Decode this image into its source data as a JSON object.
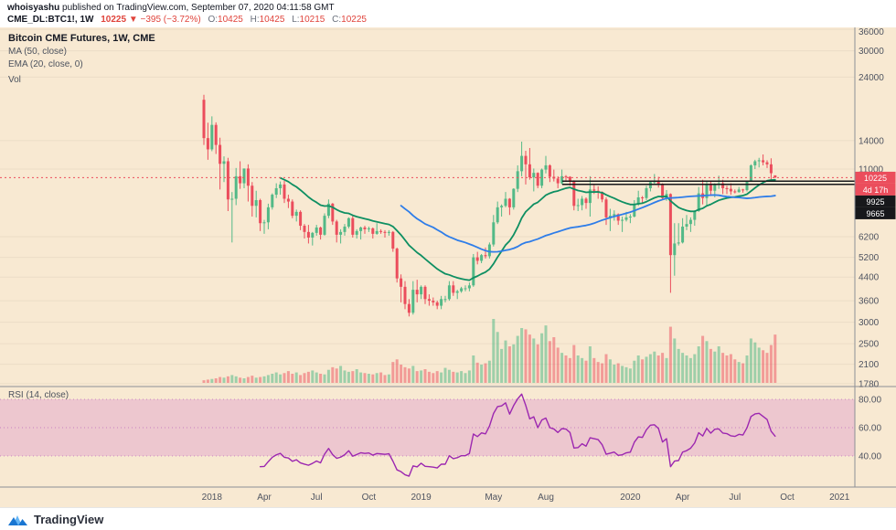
{
  "header": {
    "byline_user": "whoisyashu",
    "byline_rest": " published on TradingView.com, September 07, 2020 04:11:58 GMT",
    "symbol": "CME_DL:BTC1!, 1W",
    "last_price": "10225",
    "change": "▼ −395 (−3.72%)",
    "ohlc": {
      "o_label": "O:",
      "o": "10425",
      "h_label": "H:",
      "h": "10425",
      "l_label": "L:",
      "l": "10215",
      "c_label": "C:",
      "c": "10225"
    }
  },
  "legend": {
    "title": "Bitcoin CME Futures, 1W, CME",
    "ma": "MA (50, close)",
    "ema": "EMA (20, close, 0)",
    "vol": "Vol"
  },
  "rsi_legend": "RSI (14, close)",
  "footer": {
    "brand": "TradingView"
  },
  "colors": {
    "background": "#f8e9d2",
    "candle_up": "#53b987",
    "candle_down": "#eb4d5c",
    "vol_up": "rgba(83,185,135,0.55)",
    "vol_down": "rgba(235,77,92,0.5)",
    "ema20": "#0e8f62",
    "ma50": "#2e7de9",
    "rsi": "#9c27b0",
    "rsi_band": "rgba(201,78,195,0.22)",
    "rsi_band_line": "rgba(156,39,176,0.45)",
    "price_line": "#eb4d5c",
    "label_red_bg": "#eb4d5c",
    "label_black_bg": "#17181b",
    "axis_text": "#4f5461",
    "grid": "rgba(0,0,0,0.05)",
    "divider": "#8c8f96",
    "down_text": "#e0443c",
    "brand_blue": "#1976d2",
    "brand_blue_light": "#64b5f6"
  },
  "chart_data": {
    "type": "candlestick",
    "title": "Bitcoin CME Futures, 1W, CME",
    "symbol": "CME_DL:BTC1!",
    "interval": "1W",
    "exchange": "CME",
    "scale": "logarithmic",
    "start_week": "2017-12-18",
    "price_axis_ticks": [
      36000,
      30000,
      24000,
      14000,
      11000,
      6200,
      5200,
      4400,
      3600,
      3000,
      2500,
      2100,
      1780
    ],
    "x_axis": [
      {
        "label": "2018",
        "week": 2
      },
      {
        "label": "Apr",
        "week": 15
      },
      {
        "label": "Jul",
        "week": 28
      },
      {
        "label": "Oct",
        "week": 41
      },
      {
        "label": "2019",
        "week": 54
      },
      {
        "label": "May",
        "week": 72
      },
      {
        "label": "Aug",
        "week": 85
      },
      {
        "label": "2020",
        "week": 106
      },
      {
        "label": "Apr",
        "week": 119
      },
      {
        "label": "Jul",
        "week": 132
      },
      {
        "label": "Oct",
        "week": 145
      },
      {
        "label": "2021",
        "week": 158
      }
    ],
    "rsi_ticks": [
      {
        "v": 80,
        "label": "80.00"
      },
      {
        "v": 60,
        "label": "60.00"
      },
      {
        "v": 40,
        "label": "40.00"
      }
    ],
    "indicators": [
      {
        "name": "MA",
        "period": 50,
        "source": "close",
        "color": "#2e7de9"
      },
      {
        "name": "EMA",
        "period": 20,
        "source": "close",
        "color": "#0e8f62"
      },
      {
        "name": "RSI",
        "period": 14,
        "source": "close",
        "color": "#9c27b0",
        "band": [
          40,
          80
        ]
      }
    ],
    "last_price": 10225,
    "levels": [
      9925,
      9665
    ],
    "price_label_texts": {
      "last": "10225",
      "countdown": "4d 17h",
      "level1": "9925",
      "level2": "9665"
    },
    "candles": [
      [
        19800,
        20650,
        13500,
        14300
      ],
      [
        14300,
        16300,
        11900,
        13000
      ],
      [
        13000,
        17200,
        12800,
        16000
      ],
      [
        16000,
        16350,
        12500,
        13500
      ],
      [
        13500,
        14350,
        9250,
        11500
      ],
      [
        11500,
        12250,
        9850,
        11750
      ],
      [
        11750,
        12100,
        7700,
        8500
      ],
      [
        8500,
        9050,
        5900,
        8550
      ],
      [
        8550,
        11100,
        8100,
        10350
      ],
      [
        10350,
        11750,
        9300,
        9750
      ],
      [
        9750,
        11050,
        9350,
        11050
      ],
      [
        11050,
        11450,
        8350,
        9550
      ],
      [
        9550,
        9850,
        7350,
        8050
      ],
      [
        8050,
        9150,
        7300,
        8450
      ],
      [
        8450,
        8550,
        6500,
        6950
      ],
      [
        6950,
        7150,
        6350,
        7000
      ],
      [
        7000,
        8200,
        6600,
        7950
      ],
      [
        7950,
        8950,
        7800,
        8850
      ],
      [
        8850,
        9750,
        8600,
        9350
      ],
      [
        9350,
        9900,
        8850,
        9650
      ],
      [
        9650,
        9950,
        8250,
        8550
      ],
      [
        8550,
        8850,
        7900,
        8350
      ],
      [
        8350,
        8500,
        7250,
        7400
      ],
      [
        7400,
        7800,
        7050,
        7650
      ],
      [
        7650,
        7750,
        6550,
        6800
      ],
      [
        6800,
        6900,
        6100,
        6450
      ],
      [
        6450,
        6850,
        5850,
        6150
      ],
      [
        6150,
        6450,
        5750,
        6400
      ],
      [
        6400,
        6850,
        6250,
        6700
      ],
      [
        6700,
        6750,
        6050,
        6300
      ],
      [
        6300,
        7550,
        6250,
        7400
      ],
      [
        7400,
        8500,
        7250,
        8200
      ],
      [
        8200,
        8250,
        6850,
        7050
      ],
      [
        7050,
        7150,
        5900,
        6300
      ],
      [
        6300,
        6600,
        5850,
        6450
      ],
      [
        6450,
        6900,
        6250,
        6750
      ],
      [
        6750,
        7300,
        6650,
        7250
      ],
      [
        7250,
        7400,
        6150,
        6300
      ],
      [
        6300,
        6600,
        6100,
        6500
      ],
      [
        6500,
        6750,
        6050,
        6700
      ],
      [
        6700,
        6800,
        6350,
        6600
      ],
      [
        6600,
        6750,
        6450,
        6650
      ],
      [
        6650,
        6700,
        6100,
        6350
      ],
      [
        6350,
        6950,
        6300,
        6500
      ],
      [
        6500,
        6600,
        6350,
        6450
      ],
      [
        6450,
        6550,
        6150,
        6400
      ],
      [
        6400,
        6550,
        6250,
        6450
      ],
      [
        6450,
        6500,
        5450,
        5600
      ],
      [
        5600,
        5650,
        4200,
        4350
      ],
      [
        4350,
        4500,
        3550,
        4050
      ],
      [
        4050,
        4250,
        3350,
        3500
      ],
      [
        3500,
        3650,
        3150,
        3250
      ],
      [
        3250,
        4250,
        3200,
        3950
      ],
      [
        3950,
        4300,
        3550,
        3800
      ],
      [
        3800,
        4100,
        3650,
        4050
      ],
      [
        4050,
        4100,
        3500,
        3650
      ],
      [
        3650,
        3800,
        3450,
        3600
      ],
      [
        3600,
        3700,
        3450,
        3550
      ],
      [
        3550,
        3600,
        3350,
        3450
      ],
      [
        3450,
        3750,
        3350,
        3650
      ],
      [
        3650,
        3750,
        3550,
        3650
      ],
      [
        3650,
        4250,
        3600,
        4100
      ],
      [
        4100,
        4250,
        3750,
        3850
      ],
      [
        3850,
        3950,
        3650,
        3900
      ],
      [
        3900,
        4050,
        3850,
        4000
      ],
      [
        4000,
        4100,
        3900,
        4000
      ],
      [
        4000,
        4200,
        3900,
        4100
      ],
      [
        4100,
        5350,
        4050,
        5200
      ],
      [
        5200,
        5450,
        4900,
        5050
      ],
      [
        5050,
        5350,
        4950,
        5300
      ],
      [
        5300,
        5650,
        5150,
        5250
      ],
      [
        5250,
        5900,
        5150,
        5800
      ],
      [
        5800,
        7450,
        5700,
        7000
      ],
      [
        7000,
        8350,
        6900,
        7950
      ],
      [
        7950,
        8150,
        7350,
        8050
      ],
      [
        8050,
        9050,
        7950,
        8550
      ],
      [
        8550,
        8600,
        7450,
        7950
      ],
      [
        7950,
        9350,
        7800,
        9300
      ],
      [
        9300,
        11350,
        9050,
        10800
      ],
      [
        10800,
        13880,
        10350,
        12300
      ],
      [
        12300,
        12850,
        9650,
        11450
      ],
      [
        11450,
        13150,
        10050,
        10250
      ],
      [
        10250,
        11050,
        9100,
        10650
      ],
      [
        10650,
        10700,
        9350,
        9550
      ],
      [
        9550,
        11050,
        9350,
        10950
      ],
      [
        10950,
        12300,
        10600,
        11350
      ],
      [
        11350,
        11450,
        9850,
        10300
      ],
      [
        10300,
        10950,
        9900,
        10150
      ],
      [
        10150,
        10350,
        9350,
        9750
      ],
      [
        9750,
        10950,
        9650,
        10350
      ],
      [
        10350,
        10450,
        9900,
        10300
      ],
      [
        10300,
        10350,
        9550,
        9950
      ],
      [
        9950,
        10000,
        7750,
        8050
      ],
      [
        8050,
        8550,
        7700,
        8100
      ],
      [
        8100,
        8750,
        7750,
        8550
      ],
      [
        8550,
        8650,
        7850,
        8250
      ],
      [
        8250,
        10350,
        7350,
        9250
      ],
      [
        9250,
        9600,
        8900,
        9150
      ],
      [
        9150,
        9500,
        8550,
        9050
      ],
      [
        9050,
        9100,
        8300,
        8500
      ],
      [
        8500,
        8650,
        6850,
        7300
      ],
      [
        7300,
        7850,
        6500,
        7400
      ],
      [
        7400,
        7750,
        7100,
        7500
      ],
      [
        7500,
        7550,
        6850,
        7100
      ],
      [
        7100,
        7350,
        6450,
        7150
      ],
      [
        7150,
        7650,
        7050,
        7300
      ],
      [
        7300,
        7500,
        6950,
        7350
      ],
      [
        7350,
        8450,
        7300,
        8150
      ],
      [
        8150,
        9150,
        8050,
        8650
      ],
      [
        8650,
        8750,
        8250,
        8600
      ],
      [
        8600,
        9550,
        8450,
        9350
      ],
      [
        9350,
        9950,
        9100,
        9850
      ],
      [
        9850,
        10550,
        9650,
        9900
      ],
      [
        9900,
        10300,
        9400,
        9650
      ],
      [
        9650,
        9750,
        8450,
        8600
      ],
      [
        8600,
        9200,
        8400,
        8900
      ],
      [
        8900,
        8950,
        3850,
        5300
      ],
      [
        5300,
        6950,
        4450,
        5850
      ],
      [
        5850,
        6950,
        5750,
        5900
      ],
      [
        5900,
        7250,
        5850,
        6750
      ],
      [
        6750,
        7450,
        6550,
        6900
      ],
      [
        6900,
        7300,
        6450,
        7150
      ],
      [
        7150,
        7750,
        6800,
        7700
      ],
      [
        7700,
        9450,
        7650,
        8950
      ],
      [
        8950,
        10050,
        8150,
        8600
      ],
      [
        8600,
        9950,
        8100,
        9650
      ],
      [
        9650,
        9950,
        8750,
        9150
      ],
      [
        9150,
        9750,
        8650,
        9700
      ],
      [
        9700,
        10400,
        9300,
        9750
      ],
      [
        9750,
        10050,
        8900,
        9350
      ],
      [
        9350,
        9550,
        8900,
        9300
      ],
      [
        9300,
        9750,
        8850,
        9100
      ],
      [
        9100,
        9250,
        8950,
        9050
      ],
      [
        9050,
        9450,
        9000,
        9250
      ],
      [
        9250,
        9300,
        9000,
        9200
      ],
      [
        9200,
        9950,
        9100,
        9900
      ],
      [
        9900,
        11450,
        9900,
        11350
      ],
      [
        11350,
        11900,
        11000,
        11750
      ],
      [
        11750,
        12100,
        11150,
        11850
      ],
      [
        11850,
        12450,
        11350,
        11650
      ],
      [
        11650,
        11850,
        11100,
        11450
      ],
      [
        11450,
        12050,
        9950,
        10620
      ],
      [
        10425,
        10425,
        10215,
        10225
      ]
    ],
    "volumes": [
      0.4,
      0.5,
      0.6,
      0.7,
      0.9,
      0.8,
      1.0,
      1.2,
      1.0,
      0.8,
      0.7,
      0.9,
      1.1,
      0.8,
      0.9,
      1.0,
      1.2,
      1.4,
      1.6,
      1.3,
      1.5,
      1.8,
      1.4,
      1.6,
      1.2,
      1.5,
      1.7,
      1.9,
      1.6,
      1.4,
      1.3,
      2.0,
      2.4,
      2.2,
      2.6,
      1.9,
      1.7,
      1.8,
      2.1,
      1.6,
      1.5,
      1.4,
      1.3,
      1.5,
      1.6,
      1.2,
      1.3,
      3.2,
      3.6,
      2.8,
      2.4,
      2.2,
      2.6,
      1.8,
      1.9,
      2.1,
      1.7,
      1.5,
      1.8,
      1.6,
      2.3,
      2.0,
      1.7,
      1.6,
      1.8,
      1.5,
      1.9,
      4.2,
      3.1,
      2.8,
      3.0,
      3.4,
      9.8,
      7.8,
      5.2,
      6.5,
      5.6,
      5.9,
      7.2,
      8.4,
      8.2,
      7.4,
      6.8,
      5.9,
      7.6,
      8.8,
      6.4,
      7.0,
      5.4,
      4.6,
      4.2,
      3.8,
      5.8,
      4.2,
      3.8,
      3.4,
      5.6,
      3.8,
      3.2,
      3.0,
      4.4,
      3.6,
      2.8,
      3.0,
      2.6,
      2.4,
      2.2,
      3.4,
      4.2,
      3.6,
      4.0,
      4.4,
      4.8,
      4.2,
      4.6,
      3.8,
      8.6,
      6.8,
      5.2,
      4.6,
      4.2,
      3.8,
      4.4,
      5.6,
      7.2,
      6.4,
      5.2,
      4.8,
      5.6,
      4.6,
      4.2,
      4.4,
      3.6,
      3.2,
      3.0,
      4.2,
      6.8,
      6.2,
      5.4,
      5.0,
      4.6,
      5.8,
      7.4
    ]
  }
}
